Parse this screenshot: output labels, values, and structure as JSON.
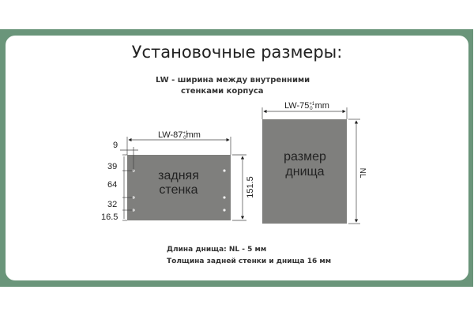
{
  "title": "Установочные размеры:",
  "legend": {
    "line1": "LW -  ширина между внутренними",
    "line2": "стенками корпуса"
  },
  "back_wall": {
    "label1": "задняя",
    "label2": "стенка",
    "width_label": "LW-87",
    "tol_plus": "+1",
    "tol_minus": "0",
    "unit": "mm",
    "height": "151.5",
    "offset_x": "9",
    "dims": [
      "39",
      "64",
      "32",
      "16.5"
    ]
  },
  "bottom": {
    "label1": "размер",
    "label2": "днища",
    "width_label": "LW-75",
    "tol_plus": "+1",
    "tol_minus": "0",
    "unit": " mm",
    "length_label": "NL"
  },
  "notes": {
    "length": "Длина днища: NL - 5  мм",
    "thickness": "Толщина задней стенки и днища 16 мм"
  },
  "colors": {
    "frame": "#6a957a",
    "panel": "#7f7f7d"
  }
}
